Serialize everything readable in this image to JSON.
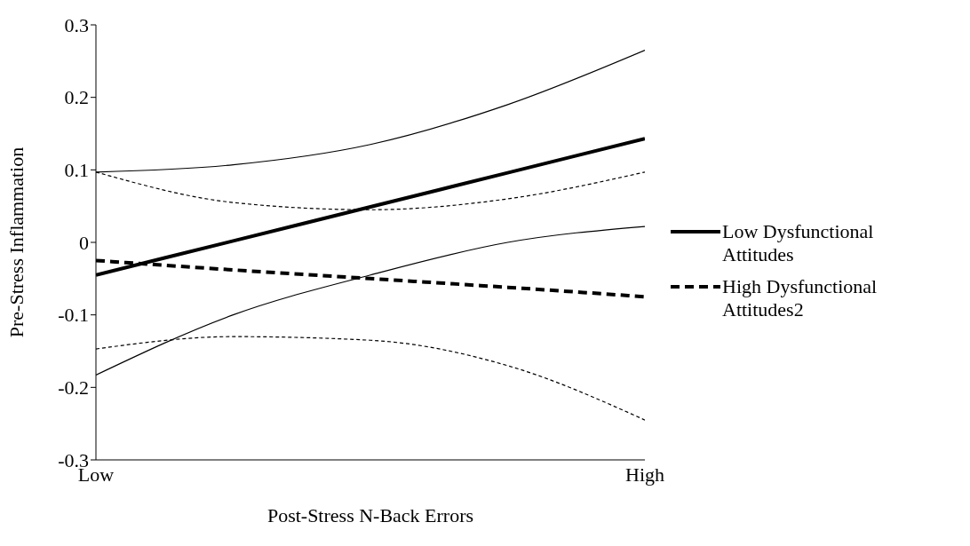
{
  "chart_data": {
    "type": "line",
    "xlabel": "Post-Stress N-Back Errors",
    "ylabel": "Pre-Stress Inflammation",
    "categories": [
      "Low",
      null,
      null,
      null,
      "High"
    ],
    "ylim": [
      -0.3,
      0.3
    ],
    "yticks": [
      -0.3,
      -0.2,
      -0.1,
      0,
      0.1,
      0.2,
      0.3
    ],
    "legend": "right",
    "marker": "none",
    "series": [
      {
        "name": "Low Dysfunctional Attitudes",
        "color": "#000000",
        "line_style": "solid",
        "values": [
          -0.045,
          0.002,
          0.049,
          0.096,
          0.143
        ]
      },
      {
        "name": "High Dysfunctional Attitudes2",
        "color": "#000000",
        "line_style": "dashed",
        "values": [
          -0.025,
          -0.038,
          -0.05,
          -0.062,
          -0.075
        ]
      },
      {
        "color": "#000000",
        "line_style": "solid",
        "values": [
          -0.183,
          -0.1,
          -0.045,
          0.0,
          0.022
        ]
      },
      {
        "color": "#000000",
        "line_style": "solid",
        "values": [
          0.097,
          0.107,
          0.135,
          0.19,
          0.265
        ]
      },
      {
        "color": "#000000",
        "line_style": "dotted",
        "values": [
          -0.147,
          -0.13,
          -0.135,
          -0.17,
          -0.245
        ]
      },
      {
        "color": "#000000",
        "line_style": "dotted",
        "values": [
          0.097,
          0.055,
          0.045,
          0.06,
          0.097
        ]
      }
    ]
  }
}
